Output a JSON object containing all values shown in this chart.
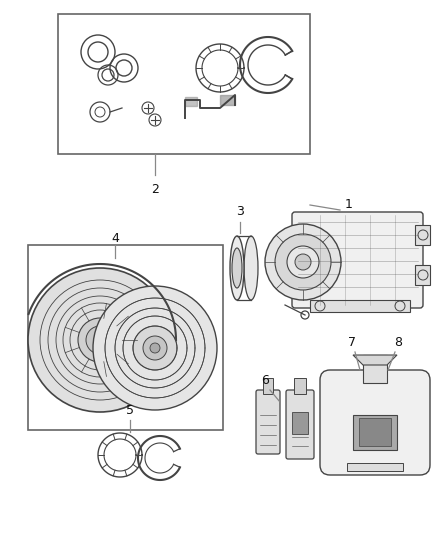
{
  "bg_color": "#ffffff",
  "label_color": "#111111",
  "line_color": "#888888",
  "part_color": "#444444",
  "fig_width": 4.38,
  "fig_height": 5.33,
  "dpi": 100
}
